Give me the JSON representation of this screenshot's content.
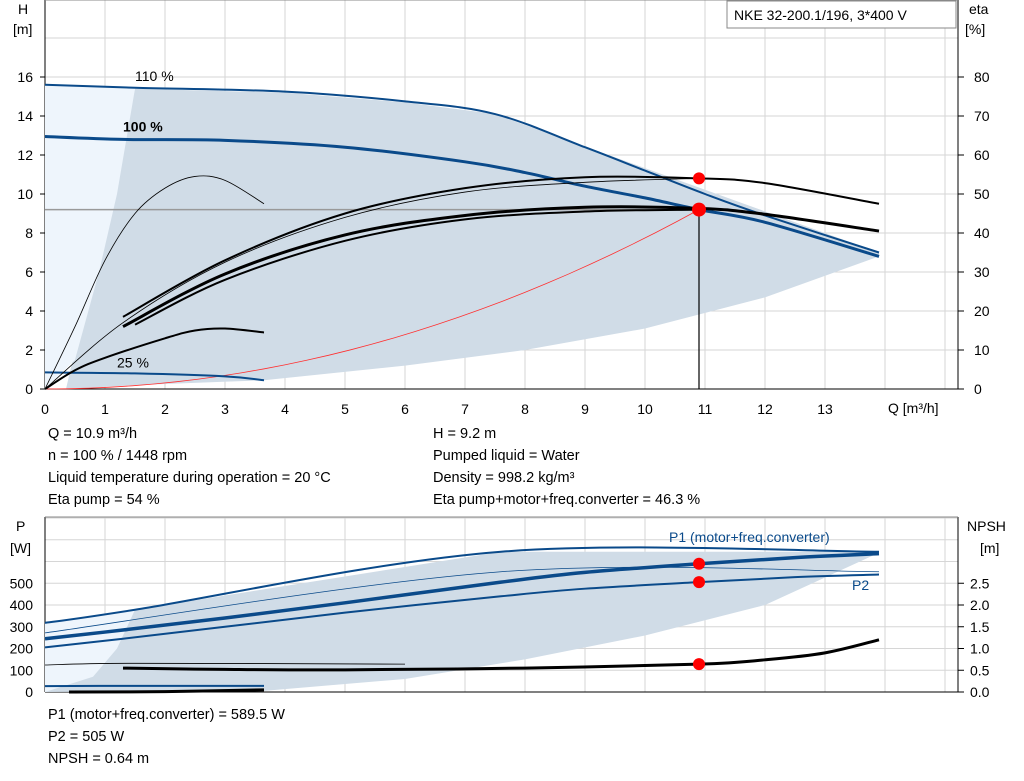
{
  "chart_data": [
    {
      "type": "line",
      "title": "NKE 32-200.1/196, 3*400 V",
      "xlabel": "Q [m³/h]",
      "ylabel": "H\n[m]",
      "ylabel_right": "eta\n[%]",
      "xlim": [
        0,
        15
      ],
      "ylim": [
        0,
        18
      ],
      "ylim_right": [
        0,
        90
      ],
      "x_ticks": [
        "0",
        "1",
        "2",
        "3",
        "4",
        "5",
        "6",
        "7",
        "8",
        "9",
        "10",
        "11",
        "12",
        "13"
      ],
      "y_ticks": [
        "0",
        "2",
        "4",
        "6",
        "8",
        "10",
        "12",
        "14",
        "16"
      ],
      "y_ticks_right": [
        "0",
        "10",
        "20",
        "30",
        "40",
        "50",
        "60",
        "70",
        "80"
      ],
      "grid": true,
      "colors": {
        "head": "#0a4a8a",
        "eta": "#000000",
        "system": "#ff3030",
        "region": "#d0dce7",
        "region_light": "#eef5fc",
        "point": "#ff0000"
      },
      "curve_labels": [
        {
          "text": "110 %",
          "x": 1.5,
          "y": 15.8
        },
        {
          "text": "100 %",
          "x": 1.3,
          "y": 13.2
        },
        {
          "text": "25 %",
          "x": 1.2,
          "y": 1.1
        }
      ],
      "operating_region": [
        [
          0.35,
          0
        ],
        [
          1.5,
          15.4
        ],
        [
          4,
          15.2
        ],
        [
          6,
          14.7
        ],
        [
          7.5,
          14.1
        ],
        [
          13.9,
          7.0
        ],
        [
          13.9,
          6.8
        ],
        [
          12,
          4.7
        ],
        [
          10,
          3.1
        ],
        [
          8,
          2.0
        ],
        [
          6,
          1.2
        ],
        [
          3.65,
          0.45
        ],
        [
          1.5,
          0.2
        ]
      ],
      "operating_region_light": [
        [
          0,
          0
        ],
        [
          0,
          15.6
        ],
        [
          1.5,
          15.4
        ],
        [
          1.2,
          10
        ],
        [
          0.9,
          6
        ],
        [
          0.5,
          1.5
        ]
      ],
      "series": [
        {
          "axis": "H",
          "width": 2,
          "points": [
            [
              0,
              15.6
            ],
            [
              1.5,
              15.45
            ],
            [
              4,
              15.25
            ],
            [
              6,
              14.75
            ],
            [
              7.5,
              14.1
            ],
            [
              9,
              12.4
            ],
            [
              10,
              11.2
            ],
            [
              11,
              10.0
            ],
            [
              12,
              8.9
            ],
            [
              13.9,
              7.0
            ]
          ]
        },
        {
          "axis": "H",
          "width": 3,
          "points": [
            [
              0,
              12.95
            ],
            [
              1.3,
              12.8
            ],
            [
              3,
              12.75
            ],
            [
              5,
              12.4
            ],
            [
              7,
              11.65
            ],
            [
              8,
              11.1
            ],
            [
              9,
              10.4
            ],
            [
              10,
              9.8
            ],
            [
              10.9,
              9.2
            ],
            [
              12,
              8.55
            ],
            [
              13.9,
              6.8
            ]
          ]
        },
        {
          "axis": "H",
          "width": 2,
          "points": [
            [
              0,
              0.85
            ],
            [
              1.5,
              0.8
            ],
            [
              3,
              0.65
            ],
            [
              3.65,
              0.45
            ]
          ]
        },
        {
          "axis": "eta",
          "width": 2,
          "points": [
            [
              1.3,
              18.5
            ],
            [
              3,
              33
            ],
            [
              5,
              45
            ],
            [
              7,
              51.5
            ],
            [
              9,
              54.3
            ],
            [
              10.9,
              54
            ],
            [
              12,
              52.8
            ],
            [
              13.9,
              47.5
            ]
          ]
        },
        {
          "axis": "eta",
          "width": 3,
          "points": [
            [
              1.3,
              16
            ],
            [
              3,
              29.5
            ],
            [
              5,
              39.5
            ],
            [
              7,
              44.5
            ],
            [
              9,
              46.6
            ],
            [
              10.9,
              46.3
            ],
            [
              12,
              44.8
            ],
            [
              13.9,
              40.5
            ]
          ]
        },
        {
          "axis": "eta",
          "width": 2,
          "points": [
            [
              1.5,
              16.5
            ],
            [
              3,
              28
            ],
            [
              5,
              38
            ],
            [
              7,
              43.5
            ],
            [
              9,
              45.5
            ],
            [
              10.9,
              46
            ]
          ]
        },
        {
          "axis": "eta",
          "width": 0.8,
          "points": [
            [
              0,
              0
            ],
            [
              1.3,
              17
            ],
            [
              3,
              32.5
            ],
            [
              5,
              44
            ],
            [
              7,
              50.5
            ],
            [
              9,
              53
            ],
            [
              10.9,
              54
            ]
          ]
        },
        {
          "axis": "eta",
          "width": 0.8,
          "points": [
            [
              0,
              0
            ],
            [
              0.5,
              16
            ],
            [
              1,
              33
            ],
            [
              1.5,
              45
            ],
            [
              2,
              51.5
            ],
            [
              2.5,
              54.5
            ],
            [
              3,
              53.5
            ],
            [
              3.65,
              47.5
            ]
          ]
        },
        {
          "axis": "eta",
          "width": 2,
          "points": [
            [
              0,
              0
            ],
            [
              0.5,
              4.8
            ],
            [
              1,
              8
            ],
            [
              2,
              13
            ],
            [
              2.5,
              15
            ],
            [
              3,
              15.5
            ],
            [
              3.65,
              14.5
            ]
          ]
        }
      ],
      "system_curve": {
        "q_max": 10.9,
        "h_at_max": 9.2
      },
      "operating_point": {
        "q": 10.9,
        "h": 9.2,
        "eta_pump": 54
      }
    },
    {
      "type": "line",
      "ylabel": "P\n[W]",
      "ylabel_right": "NPSH\n[m]",
      "xlim": [
        0,
        15
      ],
      "ylim": [
        0,
        800
      ],
      "ylim_right": [
        0,
        4.0
      ],
      "y_ticks": [
        "0",
        "100",
        "200",
        "300",
        "400",
        "500"
      ],
      "y_ticks_right": [
        "0.0",
        "0.5",
        "1.0",
        "1.5",
        "2.0",
        "2.5"
      ],
      "grid": true,
      "curve_labels": [
        {
          "text": "P1 (motor+freq.converter)",
          "x": 10.4,
          "y": 690
        },
        {
          "text": "P2",
          "x": 13.45,
          "y": 470
        }
      ],
      "operating_region": [
        [
          0,
          0
        ],
        [
          0,
          318
        ],
        [
          1.5,
          378
        ],
        [
          7.6,
          645
        ],
        [
          13.9,
          645
        ],
        [
          13.9,
          640
        ],
        [
          12,
          400
        ],
        [
          10,
          260
        ],
        [
          8,
          150
        ],
        [
          6,
          60
        ],
        [
          3.65,
          5
        ]
      ],
      "operating_region_light": [
        [
          0,
          0
        ],
        [
          0,
          318
        ],
        [
          1.5,
          378
        ],
        [
          1.2,
          200
        ],
        [
          0.8,
          70
        ]
      ],
      "series": [
        {
          "axis": "P",
          "width": 2,
          "points": [
            [
              0,
              318
            ],
            [
              1.5,
              378
            ],
            [
              7.6,
              645
            ],
            [
              13.9,
              645
            ]
          ]
        },
        {
          "axis": "P",
          "width": 0.8,
          "points": [
            [
              0,
              272
            ],
            [
              7.6,
              553
            ],
            [
              13.9,
              553
            ]
          ]
        },
        {
          "axis": "P",
          "width": 3.5,
          "points": [
            [
              0,
              245
            ],
            [
              1.3,
              285
            ],
            [
              3,
              340
            ],
            [
              5,
              410
            ],
            [
              7.6,
              505
            ],
            [
              9,
              550
            ],
            [
              10.9,
              589.5
            ],
            [
              12.5,
              618
            ],
            [
              13.9,
              636
            ]
          ]
        },
        {
          "axis": "P",
          "width": 2,
          "points": [
            [
              0,
              205
            ],
            [
              1.3,
              245
            ],
            [
              3,
              300
            ],
            [
              5,
              365
            ],
            [
              7.6,
              440
            ],
            [
              9,
              475
            ],
            [
              10.9,
              505
            ],
            [
              12.5,
              528
            ],
            [
              13.9,
              540
            ]
          ]
        },
        {
          "axis": "P",
          "width": 2,
          "points": [
            [
              0,
              27
            ],
            [
              0.9,
              28
            ],
            [
              3.65,
              28
            ]
          ]
        },
        {
          "axis": "NPSH",
          "width": 0.8,
          "points": [
            [
              0,
              0.62
            ],
            [
              1.5,
              0.66
            ],
            [
              6,
              0.64
            ]
          ]
        },
        {
          "axis": "NPSH",
          "width": 3,
          "points": [
            [
              1.3,
              0.55
            ],
            [
              3,
              0.52
            ],
            [
              5,
              0.51
            ],
            [
              8,
              0.55
            ],
            [
              10.9,
              0.64
            ],
            [
              12,
              0.74
            ],
            [
              13,
              0.9
            ],
            [
              13.9,
              1.2
            ]
          ]
        },
        {
          "axis": "NPSH",
          "width": 3,
          "points": [
            [
              0.4,
              0.0
            ],
            [
              2,
              0.01
            ],
            [
              3.65,
              0.05
            ]
          ]
        }
      ],
      "operating_points": [
        {
          "q": 10.9,
          "p": 589.5
        },
        {
          "q": 10.9,
          "p": 505
        },
        {
          "q": 10.9,
          "npsh": 0.64
        }
      ]
    }
  ],
  "results_top": {
    "left": [
      "Q = 10.9 m³/h",
      "n = 100 % / 1448 rpm",
      "Liquid temperature during operation = 20 °C",
      "Eta pump = 54 %"
    ],
    "right": [
      "H = 9.2 m",
      "Pumped liquid = Water",
      "Density = 998.2 kg/m³",
      "Eta pump+motor+freq.converter = 46.3 %"
    ]
  },
  "results_bottom": [
    "P1 (motor+freq.converter) = 589.5 W",
    "P2 = 505 W",
    "NPSH = 0.64 m"
  ]
}
